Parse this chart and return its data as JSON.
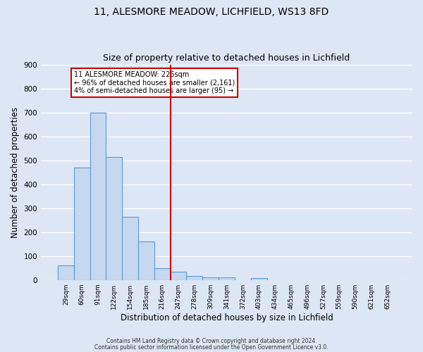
{
  "title": "11, ALESMORE MEADOW, LICHFIELD, WS13 8FD",
  "subtitle": "Size of property relative to detached houses in Lichfield",
  "xlabel": "Distribution of detached houses by size in Lichfield",
  "ylabel": "Number of detached properties",
  "categories": [
    "29sqm",
    "60sqm",
    "91sqm",
    "122sqm",
    "154sqm",
    "185sqm",
    "216sqm",
    "247sqm",
    "278sqm",
    "309sqm",
    "341sqm",
    "372sqm",
    "403sqm",
    "434sqm",
    "465sqm",
    "496sqm",
    "527sqm",
    "559sqm",
    "590sqm",
    "621sqm",
    "652sqm"
  ],
  "bar_values": [
    62,
    470,
    700,
    515,
    265,
    160,
    48,
    35,
    18,
    12,
    10,
    0,
    7,
    0,
    0,
    0,
    0,
    0,
    0,
    0,
    0
  ],
  "bar_color": "#c5d8f0",
  "bar_edge_color": "#5b9bd5",
  "vline_x": 6.5,
  "vline_color": "#cc0000",
  "annotation_line1": "11 ALESMORE MEADOW: 226sqm",
  "annotation_line2": "← 96% of detached houses are smaller (2,161)",
  "annotation_line3": "4% of semi-detached houses are larger (95) →",
  "annotation_box_color": "#ffffff",
  "annotation_box_edge_color": "#cc0000",
  "ylim": [
    0,
    900
  ],
  "yticks": [
    0,
    100,
    200,
    300,
    400,
    500,
    600,
    700,
    800,
    900
  ],
  "background_color": "#dce6f5",
  "plot_bg_color": "#dce6f5",
  "grid_color": "#ffffff",
  "footer_line1": "Contains HM Land Registry data © Crown copyright and database right 2024.",
  "footer_line2": "Contains public sector information licensed under the Open Government Licence v3.0.",
  "title_fontsize": 10,
  "subtitle_fontsize": 9,
  "xlabel_fontsize": 8.5,
  "ylabel_fontsize": 8.5
}
